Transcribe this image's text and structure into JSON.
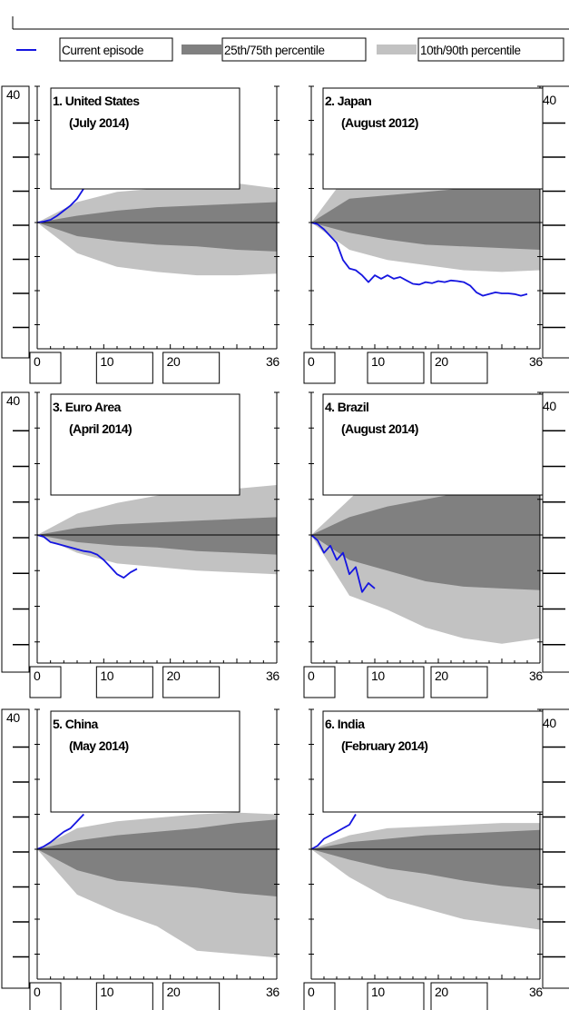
{
  "legend": {
    "current": "Current episode",
    "iqr": "25th/75th percentile",
    "decile": "10th/90th percentile"
  },
  "colors": {
    "current": "#1515e0",
    "iqr": "#808080",
    "decile": "#c2c2c2",
    "axis": "#000000"
  },
  "chart_data": [
    {
      "type": "area",
      "title": "1. United States",
      "subtitle": "(July 2014)",
      "x_ticks": [
        "0",
        "10",
        "20",
        "36"
      ],
      "y_tick_labels": [
        "40"
      ],
      "xlim": [
        0,
        36
      ],
      "ylim": [
        -30,
        40
      ],
      "series": [
        {
          "name": "Current episode",
          "x": [
            0,
            1,
            2,
            3,
            4,
            5,
            6,
            7,
            8
          ],
          "y": [
            0,
            0.3,
            0.8,
            2,
            3.5,
            5,
            7,
            10,
            12
          ]
        },
        {
          "name": "10th/90th percentile",
          "x": [
            0,
            6,
            12,
            18,
            24,
            30,
            36
          ],
          "lower": [
            0,
            -9,
            -13,
            -14.5,
            -15.5,
            -15.5,
            -15
          ],
          "upper": [
            0,
            6,
            9,
            10,
            10.5,
            11.5,
            10
          ]
        },
        {
          "name": "25th/75th percentile",
          "x": [
            0,
            6,
            12,
            18,
            24,
            30,
            36
          ],
          "lower": [
            0,
            -4,
            -5.5,
            -6.5,
            -7,
            -8,
            -8.5
          ],
          "upper": [
            0,
            2,
            3.5,
            4.5,
            5,
            5.5,
            6
          ]
        }
      ]
    },
    {
      "type": "area",
      "title": "2. Japan",
      "subtitle": "(August 2012)",
      "x_ticks": [
        "0",
        "10",
        "20",
        "36"
      ],
      "y_tick_labels": [
        "40"
      ],
      "xlim": [
        0,
        36
      ],
      "ylim": [
        -30,
        40
      ],
      "series": [
        {
          "name": "Current episode",
          "x": [
            0,
            1,
            2,
            3,
            4,
            5,
            6,
            7,
            8,
            9,
            10,
            11,
            12,
            13,
            14,
            15,
            16,
            17,
            18,
            19,
            20,
            21,
            22,
            23,
            24,
            25,
            26,
            27,
            28,
            29,
            30,
            31,
            32,
            33,
            34
          ],
          "y": [
            0,
            -0.5,
            -2,
            -4,
            -6,
            -11,
            -13.5,
            -14,
            -15.5,
            -17.5,
            -15.5,
            -16.5,
            -15.5,
            -16.5,
            -16,
            -17,
            -18,
            -18.2,
            -17.5,
            -17.8,
            -17.2,
            -17.5,
            -17,
            -17.2,
            -17.5,
            -18.5,
            -20.5,
            -21.5,
            -21,
            -20.5,
            -20.8,
            -20.8,
            -21,
            -21.5,
            -21
          ]
        },
        {
          "name": "10th/90th percentile",
          "x": [
            0,
            6,
            12,
            18,
            24,
            30,
            36
          ],
          "lower": [
            0,
            -8,
            -11,
            -12.5,
            -14,
            -14.5,
            -14
          ],
          "upper": [
            0,
            15,
            17,
            18.5,
            20,
            22,
            24
          ]
        },
        {
          "name": "25th/75th percentile",
          "x": [
            0,
            6,
            12,
            18,
            24,
            30,
            36
          ],
          "lower": [
            0,
            -3,
            -5,
            -6.5,
            -7,
            -7.5,
            -8
          ],
          "upper": [
            0,
            7,
            8,
            9,
            10,
            11,
            12
          ]
        }
      ]
    },
    {
      "type": "area",
      "title": "3. Euro Area",
      "subtitle": "(April 2014)",
      "x_ticks": [
        "0",
        "10",
        "20",
        "36"
      ],
      "y_tick_labels": [
        "40"
      ],
      "xlim": [
        0,
        36
      ],
      "ylim": [
        -30,
        40
      ],
      "series": [
        {
          "name": "Current episode",
          "x": [
            0,
            1,
            2,
            3,
            4,
            5,
            6,
            7,
            8,
            9,
            10,
            11,
            12,
            13,
            14,
            15
          ],
          "y": [
            0,
            -0.5,
            -2,
            -2.5,
            -3,
            -3.5,
            -4,
            -4.5,
            -4.8,
            -5.5,
            -7,
            -9,
            -11,
            -12,
            -10.5,
            -9.5
          ]
        },
        {
          "name": "10th/90th percentile",
          "x": [
            0,
            6,
            12,
            18,
            24,
            30,
            36
          ],
          "lower": [
            0,
            -5,
            -8,
            -9,
            -10,
            -10.5,
            -11
          ],
          "upper": [
            0,
            6,
            9,
            11,
            12,
            13,
            14
          ]
        },
        {
          "name": "25th/75th percentile",
          "x": [
            0,
            6,
            12,
            18,
            24,
            30,
            36
          ],
          "lower": [
            0,
            -2,
            -3,
            -3.5,
            -4.5,
            -5,
            -5.5
          ],
          "upper": [
            0,
            2,
            3,
            3.5,
            4,
            4.5,
            5
          ]
        }
      ]
    },
    {
      "type": "area",
      "title": "4. Brazil",
      "subtitle": "(August 2014)",
      "x_ticks": [
        "0",
        "10",
        "20",
        "36"
      ],
      "y_tick_labels": [
        "40"
      ],
      "xlim": [
        0,
        36
      ],
      "ylim": [
        -30,
        40
      ],
      "series": [
        {
          "name": "Current episode",
          "x": [
            0,
            1,
            2,
            3,
            4,
            5,
            6,
            7,
            8,
            9,
            10
          ],
          "y": [
            0,
            -1.5,
            -5,
            -3,
            -7,
            -5,
            -11,
            -9,
            -16,
            -13.5,
            -15
          ]
        },
        {
          "name": "10th/90th percentile",
          "x": [
            0,
            6,
            12,
            18,
            24,
            30,
            36
          ],
          "lower": [
            0,
            -17,
            -21,
            -26,
            -29,
            -30.5,
            -29
          ],
          "upper": [
            0,
            10,
            20,
            26,
            29,
            32,
            36
          ]
        },
        {
          "name": "25th/75th percentile",
          "x": [
            0,
            6,
            12,
            18,
            24,
            30,
            36
          ],
          "lower": [
            0,
            -7,
            -10,
            -13,
            -14.5,
            -15,
            -15.5
          ],
          "upper": [
            0,
            5,
            8,
            10,
            12,
            14,
            18
          ]
        }
      ]
    },
    {
      "type": "area",
      "title": "5. China",
      "subtitle": "(May 2014)",
      "x_ticks": [
        "0",
        "10",
        "20",
        "36"
      ],
      "y_tick_labels": [
        "40"
      ],
      "xlim": [
        0,
        36
      ],
      "ylim": [
        -30,
        40
      ],
      "series": [
        {
          "name": "Current episode",
          "x": [
            0,
            1,
            2,
            3,
            4,
            5,
            6,
            7
          ],
          "y": [
            0,
            0.8,
            2,
            3.5,
            5,
            6,
            8,
            10
          ]
        },
        {
          "name": "10th/90th percentile",
          "x": [
            0,
            6,
            12,
            18,
            24,
            30,
            36
          ],
          "lower": [
            0,
            -13,
            -18,
            -22,
            -29,
            -30,
            -31
          ],
          "upper": [
            0,
            6,
            8,
            9,
            10,
            10.5,
            10
          ]
        },
        {
          "name": "25th/75th percentile",
          "x": [
            0,
            6,
            12,
            18,
            24,
            30,
            36
          ],
          "lower": [
            0,
            -6,
            -9,
            -10,
            -11,
            -12.5,
            -13.5
          ],
          "upper": [
            0,
            2.5,
            4,
            5,
            6,
            7.5,
            8.5
          ]
        }
      ]
    },
    {
      "type": "area",
      "title": "6. India",
      "subtitle": "(February 2014)",
      "x_ticks": [
        "0",
        "10",
        "20",
        "36"
      ],
      "y_tick_labels": [
        "40"
      ],
      "xlim": [
        0,
        36
      ],
      "ylim": [
        -30,
        40
      ],
      "series": [
        {
          "name": "Current episode",
          "x": [
            0,
            1,
            2,
            3,
            4,
            5,
            6,
            7
          ],
          "y": [
            0,
            1,
            3,
            4,
            5,
            6,
            7,
            10
          ]
        },
        {
          "name": "10th/90th percentile",
          "x": [
            0,
            6,
            12,
            18,
            24,
            30,
            36
          ],
          "lower": [
            0,
            -8,
            -14,
            -17,
            -20,
            -21.5,
            -23
          ],
          "upper": [
            0,
            4,
            6,
            6.5,
            7,
            7.5,
            7.5
          ]
        },
        {
          "name": "25th/75th percentile",
          "x": [
            0,
            6,
            12,
            18,
            24,
            30,
            36
          ],
          "lower": [
            0,
            -3,
            -5.5,
            -7,
            -9,
            -10.5,
            -11.5
          ],
          "upper": [
            0,
            2,
            3,
            4,
            4.5,
            5,
            5.5
          ]
        }
      ]
    }
  ]
}
